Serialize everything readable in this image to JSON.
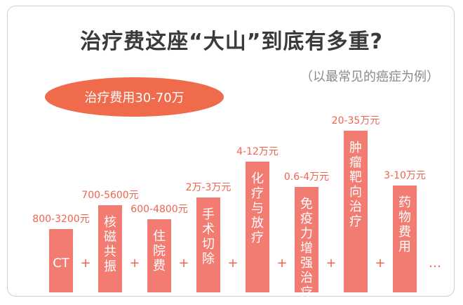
{
  "title": "治疗费这座“大山”到底有多重?",
  "subtitle": "（以最常见的癌症为例）",
  "summary_badge": "治疗费用30-70万",
  "separator": "+",
  "ellipsis": "…",
  "colors": {
    "bar": "#f27b72",
    "accent": "#f16350",
    "badge": "#f06a4c"
  },
  "chart_data": {
    "type": "bar",
    "categories": [
      "CT",
      "核磁共振",
      "住院费",
      "手术切除",
      "化疗与放疗",
      "免疫力增强治疗",
      "肿瘤靶向治疗",
      "药物费用"
    ],
    "cost_labels": [
      "800-3200元",
      "700-5600元",
      "600-4800元",
      "2万-3万元",
      "4-12万元",
      "0.6-4万元",
      "20-35万元",
      "3-10万元"
    ],
    "values": [
      800,
      5600,
      4800,
      30000,
      120000,
      40000,
      350000,
      100000
    ],
    "vertical_text": [
      false,
      true,
      true,
      true,
      true,
      true,
      true,
      true
    ]
  }
}
